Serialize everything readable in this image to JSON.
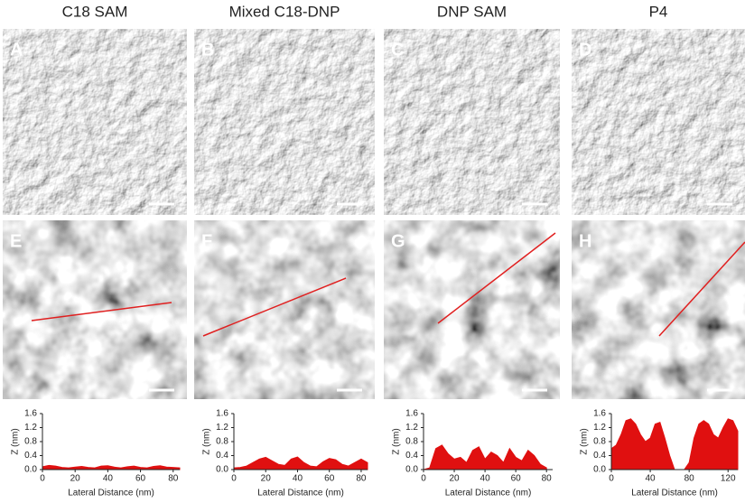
{
  "columns": [
    {
      "title": "C18 SAM",
      "panel_labels": [
        "A",
        "E"
      ]
    },
    {
      "title": "Mixed C18-DNP",
      "panel_labels": [
        "B",
        "F"
      ]
    },
    {
      "title": "DNP SAM",
      "panel_labels": [
        "C",
        "G"
      ]
    },
    {
      "title": "P4",
      "panel_labels": [
        "D",
        "H"
      ]
    }
  ],
  "chart_data": [
    {
      "type": "area",
      "x_label": "Lateral Distance (nm)",
      "y_label": "Z (nm)",
      "color": "#e01010",
      "x": [
        0,
        4,
        8,
        12,
        16,
        20,
        24,
        28,
        32,
        36,
        40,
        44,
        48,
        52,
        56,
        60,
        64,
        68,
        72,
        76,
        80,
        84
      ],
      "values": [
        0.08,
        0.12,
        0.1,
        0.06,
        0.05,
        0.07,
        0.09,
        0.06,
        0.05,
        0.1,
        0.11,
        0.07,
        0.05,
        0.08,
        0.1,
        0.06,
        0.05,
        0.09,
        0.11,
        0.07,
        0.06,
        0.05
      ],
      "xlim": [
        0,
        84
      ],
      "ylim": [
        0,
        1.6
      ],
      "xticks": [
        0,
        20,
        40,
        60,
        80
      ],
      "yticks": [
        {
          "value": 0,
          "label": "0.0"
        },
        0.4,
        0.8,
        1.2,
        1.6
      ]
    },
    {
      "type": "area",
      "x_label": "Lateral Distance (nm)",
      "y_label": "Z (nm)",
      "color": "#e01010",
      "x": [
        0,
        4,
        8,
        12,
        16,
        20,
        24,
        28,
        32,
        36,
        40,
        44,
        48,
        52,
        56,
        60,
        64,
        68,
        72,
        76,
        80,
        84
      ],
      "values": [
        0.05,
        0.06,
        0.1,
        0.2,
        0.3,
        0.35,
        0.25,
        0.15,
        0.12,
        0.3,
        0.36,
        0.2,
        0.1,
        0.08,
        0.22,
        0.32,
        0.28,
        0.15,
        0.1,
        0.2,
        0.3,
        0.2
      ],
      "xlim": [
        0,
        84
      ],
      "ylim": [
        0,
        1.6
      ],
      "xticks": [
        0,
        20,
        40,
        60,
        80
      ],
      "yticks": [
        {
          "value": 0,
          "label": "0.0"
        },
        0.4,
        0.8,
        1.2,
        1.6
      ]
    },
    {
      "type": "area",
      "x_label": "Lateral Distance (nm)",
      "y_label": "Z (nm)",
      "color": "#e01010",
      "x": [
        0,
        4,
        8,
        12,
        16,
        20,
        24,
        28,
        32,
        36,
        40,
        44,
        48,
        52,
        56,
        60,
        64,
        68,
        72,
        76,
        80
      ],
      "values": [
        0,
        0.05,
        0.6,
        0.7,
        0.45,
        0.3,
        0.35,
        0.2,
        0.55,
        0.65,
        0.3,
        0.5,
        0.4,
        0.2,
        0.6,
        0.35,
        0.25,
        0.55,
        0.4,
        0.15,
        0.05
      ],
      "xlim": [
        0,
        84
      ],
      "ylim": [
        0,
        1.6
      ],
      "xticks": [
        0,
        20,
        40,
        60,
        80
      ],
      "yticks": [
        {
          "value": 0,
          "label": "0.0"
        },
        0.4,
        0.8,
        1.2,
        1.6
      ]
    },
    {
      "type": "area",
      "x_label": "Lateral Distance (nm)",
      "y_label": "Z (nm)",
      "color": "#e01010",
      "x": [
        0,
        5,
        10,
        15,
        20,
        25,
        30,
        35,
        40,
        45,
        50,
        55,
        60,
        65,
        70,
        75,
        80,
        85,
        90,
        95,
        100,
        105,
        110,
        115,
        120,
        125,
        130
      ],
      "values": [
        0.6,
        0.7,
        1.0,
        1.4,
        1.45,
        1.3,
        1.0,
        0.8,
        0.9,
        1.3,
        1.35,
        0.9,
        0.4,
        0.0,
        0.0,
        0.0,
        0.2,
        0.9,
        1.3,
        1.4,
        1.3,
        1.0,
        0.9,
        1.2,
        1.45,
        1.4,
        1.1
      ],
      "xlim": [
        0,
        130
      ],
      "ylim": [
        0,
        1.6
      ],
      "xticks": [
        0,
        40,
        80,
        120
      ],
      "yticks": [
        {
          "value": 0,
          "label": "0.0"
        },
        0.4,
        0.8,
        1.2,
        1.6
      ]
    }
  ]
}
